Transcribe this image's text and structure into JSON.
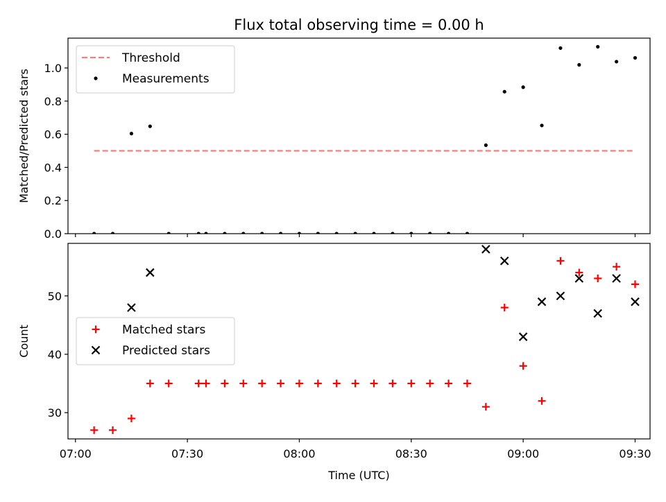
{
  "chart_data": [
    {
      "type": "scatter",
      "title": "Flux total observing time = 0.00 h",
      "xlabel": "",
      "ylabel": "Matched/Predicted stars",
      "xlim": [
        "06:58",
        "09:34"
      ],
      "ylim": [
        0,
        1.18
      ],
      "yticks": [
        0.0,
        0.2,
        0.4,
        0.6,
        0.8,
        1.0
      ],
      "ytick_labels": [
        "0.0",
        "0.2",
        "0.4",
        "0.6",
        "0.8",
        "1.0"
      ],
      "legend_position": "top-left",
      "series": [
        {
          "name": "Threshold",
          "kind": "line-dashed",
          "color": "#f08080",
          "x": [
            "07:05",
            "09:30"
          ],
          "y": [
            0.5,
            0.5
          ]
        },
        {
          "name": "Measurements",
          "kind": "dot",
          "color": "#000000",
          "x": [
            "07:05",
            "07:10",
            "07:15",
            "07:20",
            "07:25",
            "07:33",
            "07:35",
            "07:40",
            "07:45",
            "07:50",
            "07:55",
            "08:00",
            "08:05",
            "08:10",
            "08:15",
            "08:20",
            "08:25",
            "08:30",
            "08:35",
            "08:40",
            "08:45",
            "08:50",
            "08:55",
            "09:00",
            "09:05",
            "09:10",
            "09:15",
            "09:20",
            "09:25",
            "09:30"
          ],
          "y": [
            0,
            0,
            0.604,
            0.648,
            0,
            0,
            0,
            0,
            0,
            0,
            0,
            0,
            0,
            0,
            0,
            0,
            0,
            0,
            0,
            0,
            0,
            0.534,
            0.857,
            0.884,
            0.653,
            1.12,
            1.019,
            1.128,
            1.038,
            1.061
          ]
        }
      ]
    },
    {
      "type": "scatter",
      "title": "",
      "xlabel": "Time (UTC)",
      "ylabel": "Count",
      "xlim": [
        "06:58",
        "09:34"
      ],
      "xticks": [
        "07:00",
        "07:30",
        "08:00",
        "08:30",
        "09:00",
        "09:30"
      ],
      "xtick_labels": [
        "07:00",
        "07:30",
        "08:00",
        "08:30",
        "09:00",
        "09:30"
      ],
      "ylim": [
        25.5,
        59
      ],
      "yticks": [
        30,
        40,
        50
      ],
      "ytick_labels": [
        "30",
        "40",
        "50"
      ],
      "legend_position": "center-left",
      "series": [
        {
          "name": "Matched stars",
          "kind": "plus",
          "color": "#ff0000",
          "x": [
            "07:05",
            "07:10",
            "07:15",
            "07:20",
            "07:25",
            "07:33",
            "07:35",
            "07:40",
            "07:45",
            "07:50",
            "07:55",
            "08:00",
            "08:05",
            "08:10",
            "08:15",
            "08:20",
            "08:25",
            "08:30",
            "08:35",
            "08:40",
            "08:45",
            "08:50",
            "08:55",
            "09:00",
            "09:05",
            "09:10",
            "09:15",
            "09:20",
            "09:25",
            "09:30"
          ],
          "y": [
            27,
            27,
            29,
            35,
            35,
            35,
            35,
            35,
            35,
            35,
            35,
            35,
            35,
            35,
            35,
            35,
            35,
            35,
            35,
            35,
            35,
            31,
            48,
            38,
            32,
            56,
            54,
            53,
            55,
            52
          ]
        },
        {
          "name": "Predicted stars",
          "kind": "cross",
          "color": "#000000",
          "x": [
            "07:15",
            "07:20",
            "08:50",
            "08:55",
            "09:00",
            "09:05",
            "09:10",
            "09:15",
            "09:20",
            "09:25",
            "09:30"
          ],
          "y": [
            48,
            54,
            58,
            56,
            43,
            49,
            50,
            53,
            47,
            53,
            49
          ]
        }
      ]
    }
  ]
}
